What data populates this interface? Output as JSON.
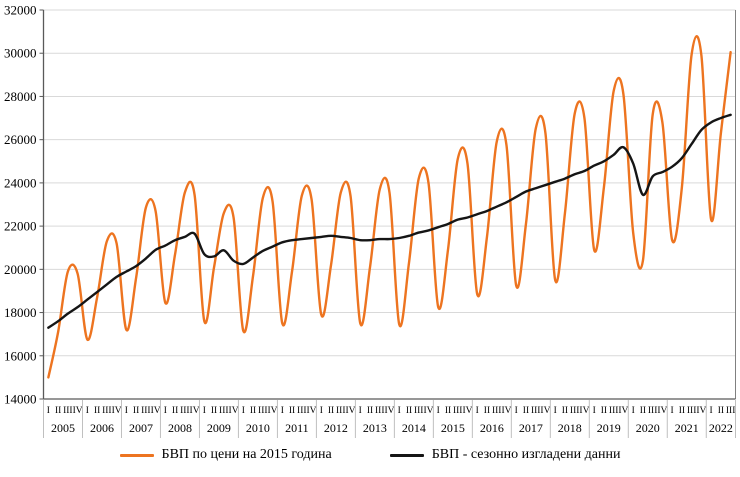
{
  "chart_data": {
    "type": "line",
    "title": "",
    "y_axis": {
      "min": 14000,
      "max": 32000,
      "step": 2000
    },
    "x_axis": {
      "quarter_labels": [
        "I",
        "II",
        "III",
        "IV"
      ],
      "years": [
        "2005",
        "2006",
        "2007",
        "2008",
        "2009",
        "2010",
        "2011",
        "2012",
        "2013",
        "2014",
        "2015",
        "2016",
        "2017",
        "2018",
        "2019",
        "2020",
        "2021",
        "2022"
      ],
      "last_year_quarters": 3
    },
    "grid": true,
    "legend_position": "bottom",
    "line_smoothing": true,
    "series": [
      {
        "name": "БВП по цени на 2015 година",
        "color": "#ED7420",
        "values": [
          15000,
          17100,
          19900,
          19800,
          16750,
          18700,
          21300,
          21200,
          17200,
          19600,
          22850,
          22700,
          18450,
          20700,
          23550,
          23450,
          17600,
          20100,
          22600,
          22400,
          17150,
          19700,
          23300,
          23150,
          17500,
          19900,
          23400,
          23250,
          17900,
          20200,
          23550,
          23400,
          17500,
          20100,
          23700,
          23550,
          17450,
          20300,
          24200,
          24000,
          18250,
          20900,
          25100,
          24900,
          18850,
          21500,
          25900,
          25750,
          19250,
          22100,
          26500,
          26300,
          19500,
          22600,
          27200,
          27000,
          20900,
          23800,
          28250,
          28100,
          21700,
          20400,
          27150,
          26800,
          21350,
          23800,
          29950,
          29900,
          22300,
          26300,
          30050
        ]
      },
      {
        "name": "БВП - сезонно изгладени данни",
        "color": "#151515",
        "values": [
          17300,
          17600,
          17950,
          18250,
          18600,
          18950,
          19300,
          19650,
          19900,
          20150,
          20500,
          20900,
          21100,
          21350,
          21500,
          21650,
          20700,
          20600,
          20880,
          20400,
          20250,
          20550,
          20850,
          21050,
          21250,
          21350,
          21400,
          21450,
          21500,
          21550,
          21500,
          21450,
          21350,
          21350,
          21400,
          21400,
          21450,
          21550,
          21700,
          21800,
          21950,
          22100,
          22300,
          22400,
          22550,
          22700,
          22900,
          23100,
          23350,
          23600,
          23750,
          23900,
          24050,
          24200,
          24400,
          24550,
          24800,
          25000,
          25300,
          25650,
          24900,
          23450,
          24300,
          24500,
          24750,
          25150,
          25800,
          26450,
          26800,
          27000,
          27150
        ]
      }
    ],
    "colors": {
      "gridline": "#D9D9D9",
      "axis": "#595959",
      "year_separator": "#BFBFBF",
      "text": "#000000",
      "background": "#FFFFFF"
    }
  }
}
